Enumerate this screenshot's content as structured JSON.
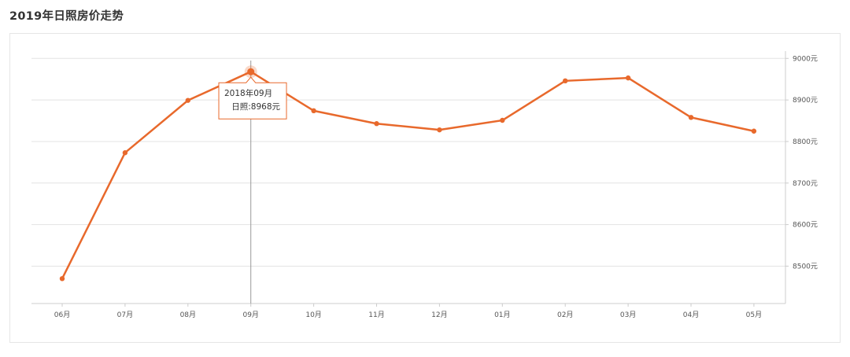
{
  "page": {
    "title": "2019年日照房价走势"
  },
  "colors": {
    "line": "#e8692c",
    "grid": "#e3e3e3",
    "axis": "#cccccc",
    "tick_text": "#555555"
  },
  "tooltip": {
    "date": "2018年09月",
    "value_text": "日照:8968元"
  },
  "chart_data": {
    "type": "line",
    "title": "2019年日照房价走势",
    "xlabel": "",
    "ylabel": "",
    "categories": [
      "06月",
      "07月",
      "08月",
      "09月",
      "10月",
      "11月",
      "12月",
      "01月",
      "02月",
      "03月",
      "04月",
      "05月"
    ],
    "series": [
      {
        "values": [
          8470,
          8773,
          8899,
          8968,
          8874,
          8843,
          8828,
          8851,
          8946,
          8953,
          8858,
          8825
        ]
      }
    ],
    "ylim": [
      8410,
      9010
    ],
    "yticks": [
      8500,
      8600,
      8700,
      8800,
      8900,
      9000
    ],
    "ytick_labels": [
      "8500元",
      "8600元",
      "8700元",
      "8800元",
      "8900元",
      "9000元"
    ],
    "y_axis_position": "right",
    "grid": true,
    "legend": "none",
    "highlighted_category": "09月"
  }
}
